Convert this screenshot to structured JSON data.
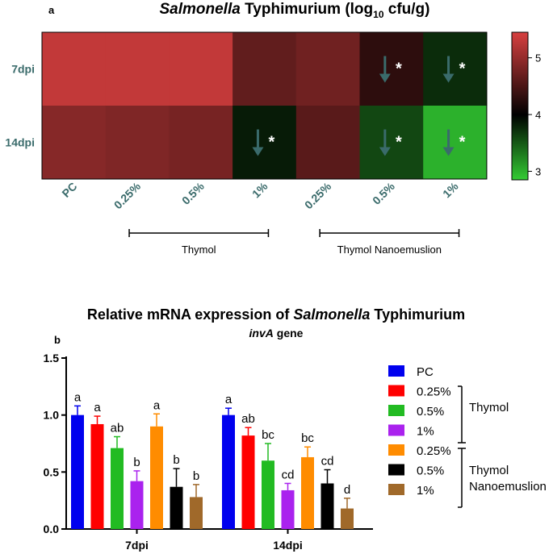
{
  "panel_a": {
    "label": "a",
    "title_italic": "Salmonella",
    "title_rest": "Typhimurium",
    "title_units": "(log",
    "title_units_sub": "10",
    "title_units_end": "cfu/g)",
    "rows": [
      "7dpi",
      "14dpi"
    ],
    "columns": [
      "PC",
      "0.25%",
      "0.5%",
      "1%",
      "0.25%",
      "0.5%",
      "1%"
    ],
    "groups": [
      {
        "name": "Thymol",
        "from_col": 1,
        "to_col": 3
      },
      {
        "name": "Thymol Nanoemuslion",
        "from_col": 4,
        "to_col": 6
      }
    ],
    "colorbar": {
      "min": 2.85,
      "max": 5.45,
      "ticks": [
        3,
        4,
        5
      ],
      "colors": {
        "low": "#33cc33",
        "mid": "#000000",
        "high": "#d84040"
      }
    },
    "chart_data": {
      "type": "heatmap",
      "title": "Salmonella Typhimurium (log10 cfu/g)",
      "rows": [
        "7dpi",
        "14dpi"
      ],
      "columns": [
        "PC",
        "0.25%",
        "0.5%",
        "1%",
        "0.25%",
        "0.5%",
        "1%"
      ],
      "values": [
        [
          5.3,
          5.3,
          5.3,
          4.65,
          4.75,
          4.3,
          3.75
        ],
        [
          4.9,
          4.85,
          4.8,
          3.85,
          4.6,
          3.6,
          3.0
        ]
      ],
      "significant": [
        [
          false,
          false,
          false,
          false,
          false,
          true,
          true
        ],
        [
          false,
          false,
          false,
          true,
          false,
          true,
          true
        ]
      ],
      "marker": "*"
    }
  },
  "panel_b": {
    "label": "b",
    "title_prefix": "Relative mRNA expression of",
    "title_italic": "Salmonella",
    "title_suffix": "Typhimurium",
    "subtitle_italic": "invA",
    "subtitle_rest": "gene",
    "legend": [
      {
        "name": "PC",
        "color": "#0000ee"
      },
      {
        "name": "0.25%",
        "color": "#ff0000"
      },
      {
        "name": "0.5%",
        "color": "#22bb22"
      },
      {
        "name": "1%",
        "color": "#aa22ee"
      },
      {
        "name": "0.25%",
        "color": "#ff8c00"
      },
      {
        "name": "0.5%",
        "color": "#000000"
      },
      {
        "name": "1%",
        "color": "#a0692a"
      }
    ],
    "legend_groups": [
      "Thymol",
      "Thymol Nanoemuslion"
    ],
    "chart_data": {
      "type": "bar",
      "categories": [
        "7dpi",
        "14dpi"
      ],
      "ylim": [
        0,
        1.5
      ],
      "yticks": [
        0.0,
        0.5,
        1.0,
        1.5
      ],
      "ytick_labels": [
        "0.0",
        "0.5",
        "1.0",
        "1.5"
      ],
      "series": [
        {
          "name": "PC",
          "values": [
            1.0,
            1.0
          ],
          "errors": [
            0.08,
            0.06
          ],
          "letters": [
            "a",
            "a"
          ]
        },
        {
          "name": "0.25%",
          "values": [
            0.92,
            0.82
          ],
          "errors": [
            0.07,
            0.07
          ],
          "letters": [
            "a",
            "ab"
          ]
        },
        {
          "name": "0.5%",
          "values": [
            0.71,
            0.6
          ],
          "errors": [
            0.1,
            0.15
          ],
          "letters": [
            "ab",
            "bc"
          ]
        },
        {
          "name": "1%",
          "values": [
            0.42,
            0.34
          ],
          "errors": [
            0.09,
            0.06
          ],
          "letters": [
            "b",
            "cd"
          ]
        },
        {
          "name": "0.25%",
          "values": [
            0.9,
            0.63
          ],
          "errors": [
            0.11,
            0.09
          ],
          "letters": [
            "a",
            "bc"
          ]
        },
        {
          "name": "0.5%",
          "values": [
            0.37,
            0.4
          ],
          "errors": [
            0.16,
            0.12
          ],
          "letters": [
            "b",
            "cd"
          ]
        },
        {
          "name": "1%",
          "values": [
            0.28,
            0.18
          ],
          "errors": [
            0.11,
            0.09
          ],
          "letters": [
            "b",
            "d"
          ]
        }
      ]
    }
  }
}
